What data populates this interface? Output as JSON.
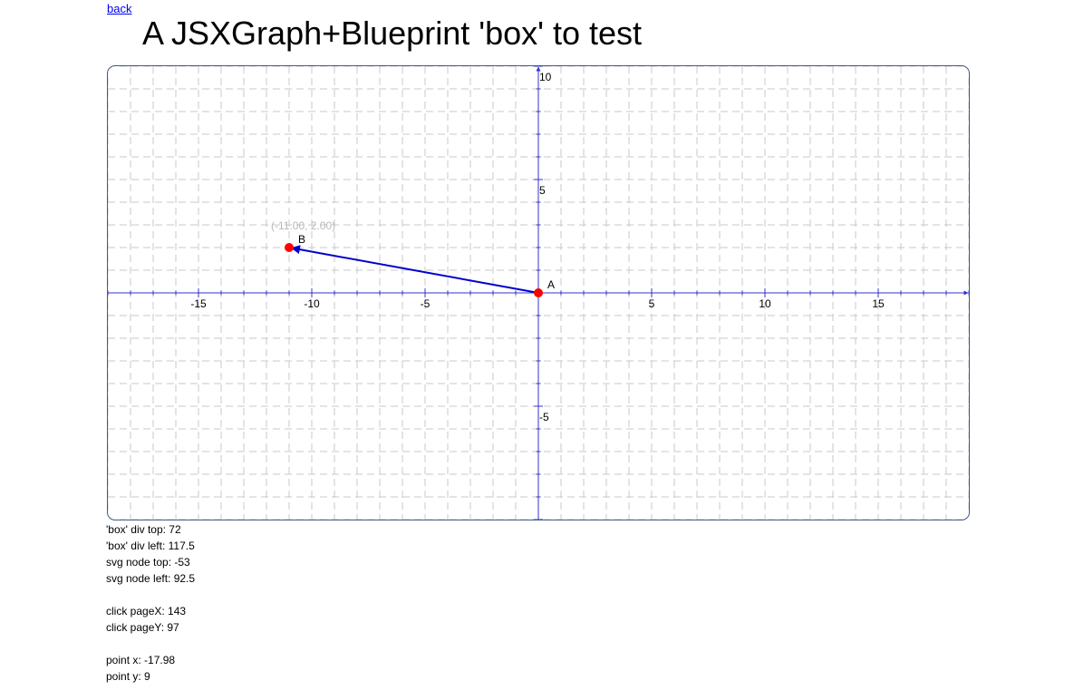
{
  "nav": {
    "back_label": "back"
  },
  "page": {
    "title": "A JSXGraph+Blueprint 'box' to test"
  },
  "board": {
    "x_range": [
      -19,
      19
    ],
    "y_range": [
      -10,
      10
    ],
    "grid": true,
    "x_tick_labels": [
      {
        "value": -15,
        "label": "-15"
      },
      {
        "value": -10,
        "label": "-10"
      },
      {
        "value": -5,
        "label": "-5"
      },
      {
        "value": 5,
        "label": "5"
      },
      {
        "value": 10,
        "label": "10"
      },
      {
        "value": 15,
        "label": "15"
      }
    ],
    "y_tick_labels": [
      {
        "value": 10,
        "label": "10"
      },
      {
        "value": 5,
        "label": "5"
      },
      {
        "value": -5,
        "label": "-5"
      }
    ],
    "points": [
      {
        "name": "A",
        "x": 0,
        "y": 0,
        "color": "#ff0000"
      },
      {
        "name": "B",
        "x": -11,
        "y": 2,
        "color": "#ff0000"
      }
    ],
    "arrow": {
      "from": "A",
      "to": "B",
      "color": "#0000cc"
    },
    "coord_readout": "(-11.00, 2.00)",
    "axis_color": "#3333cc",
    "grid_color": "#c8c8c8"
  },
  "info": {
    "box_top": "'box' div top: 72",
    "box_left": "'box' div left: 117.5",
    "svg_top": "svg node top: -53",
    "svg_left": "svg node left: 92.5",
    "click_pagex": "click pageX: 143",
    "click_pagey": "click pageY: 97",
    "point_x": "point x: -17.98",
    "point_y": "point y: 9"
  }
}
